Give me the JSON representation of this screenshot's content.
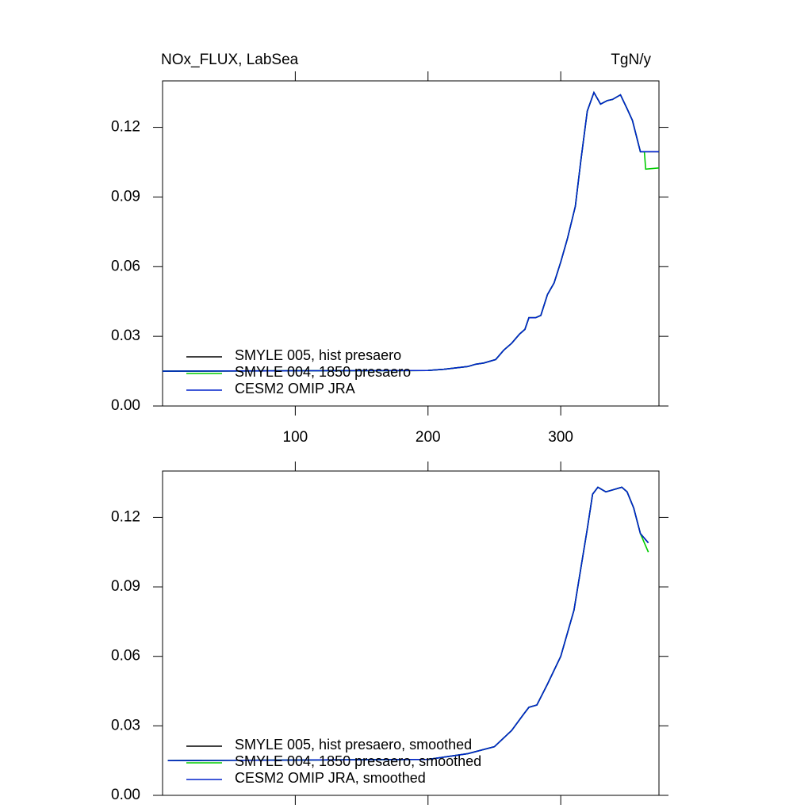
{
  "chart_data": [
    {
      "type": "line",
      "title": "NOx_FLUX, LabSea",
      "units": "TgN/y",
      "x": [
        0,
        200,
        212,
        230,
        236,
        242,
        251,
        257,
        263,
        269,
        273,
        276,
        281,
        285,
        290,
        295,
        300,
        305,
        311,
        315,
        320,
        325,
        330,
        335,
        339,
        345,
        350,
        354,
        360,
        363,
        364,
        374
      ],
      "series": [
        {
          "name": "SMYLE 005, hist presaero",
          "color": "#000000",
          "values": [
            0.015,
            0.0153,
            0.0158,
            0.017,
            0.018,
            0.0185,
            0.02,
            0.024,
            0.027,
            0.031,
            0.033,
            0.038,
            0.038,
            0.039,
            0.048,
            0.053,
            0.062,
            0.072,
            0.086,
            0.105,
            0.127,
            0.135,
            0.13,
            0.1315,
            0.132,
            0.134,
            0.128,
            0.123,
            0.1095,
            0.1095,
            0.1095,
            0.1095
          ]
        },
        {
          "name": "SMYLE 004, 1850 presaero",
          "color": "#00cc00",
          "values": [
            0.015,
            0.0153,
            0.0158,
            0.017,
            0.018,
            0.0185,
            0.02,
            0.024,
            0.027,
            0.031,
            0.033,
            0.038,
            0.038,
            0.039,
            0.048,
            0.053,
            0.062,
            0.072,
            0.086,
            0.105,
            0.127,
            0.135,
            0.13,
            0.1315,
            0.132,
            0.134,
            0.128,
            0.123,
            0.1095,
            0.1095,
            0.102,
            0.1025
          ]
        },
        {
          "name": "CESM2 OMIP JRA",
          "color": "#0022cc",
          "values": [
            0.015,
            0.0153,
            0.0158,
            0.017,
            0.018,
            0.0185,
            0.02,
            0.024,
            0.027,
            0.031,
            0.033,
            0.038,
            0.038,
            0.039,
            0.048,
            0.053,
            0.062,
            0.072,
            0.086,
            0.105,
            0.127,
            0.135,
            0.13,
            0.1315,
            0.132,
            0.134,
            0.128,
            0.123,
            0.1095,
            0.1095,
            0.1095,
            0.1095
          ]
        }
      ],
      "xlim": [
        0,
        374
      ],
      "xticks": [
        100,
        200,
        300
      ],
      "xtick_labels": true,
      "ylim": [
        0,
        0.14
      ],
      "yticks": [
        {
          "value": 0,
          "label": "0.00"
        },
        {
          "value": 0.03,
          "label": "0.03"
        },
        {
          "value": 0.06,
          "label": "0.06"
        },
        {
          "value": 0.09,
          "label": "0.09"
        },
        {
          "value": 0.12,
          "label": "0.12"
        }
      ],
      "legend": "lower left"
    },
    {
      "type": "line",
      "x": [
        4,
        200,
        230,
        250,
        263,
        272,
        276,
        282,
        290,
        300,
        310,
        320,
        324,
        328,
        334,
        340,
        346,
        350,
        355,
        360,
        366
      ],
      "series": [
        {
          "name": "SMYLE 005, hist presaero, smoothed",
          "color": "#000000",
          "values": [
            0.015,
            0.0155,
            0.018,
            0.021,
            0.028,
            0.035,
            0.038,
            0.039,
            0.048,
            0.06,
            0.08,
            0.115,
            0.13,
            0.133,
            0.131,
            0.132,
            0.133,
            0.131,
            0.124,
            0.113,
            0.109
          ]
        },
        {
          "name": "SMYLE 004, 1850 presaero, smoothed",
          "color": "#00cc00",
          "values": [
            0.015,
            0.0155,
            0.018,
            0.021,
            0.028,
            0.035,
            0.038,
            0.039,
            0.048,
            0.06,
            0.08,
            0.115,
            0.13,
            0.133,
            0.131,
            0.132,
            0.133,
            0.131,
            0.124,
            0.113,
            0.105
          ]
        },
        {
          "name": "CESM2 OMIP JRA, smoothed",
          "color": "#0022cc",
          "values": [
            0.015,
            0.0155,
            0.018,
            0.021,
            0.028,
            0.035,
            0.038,
            0.039,
            0.048,
            0.06,
            0.08,
            0.115,
            0.13,
            0.133,
            0.131,
            0.132,
            0.133,
            0.131,
            0.124,
            0.113,
            0.109
          ]
        }
      ],
      "xlim": [
        0,
        374
      ],
      "xticks": [
        100,
        200,
        300
      ],
      "xtick_labels": false,
      "ylim": [
        0,
        0.14
      ],
      "yticks": [
        {
          "value": 0,
          "label": "0.00"
        },
        {
          "value": 0.03,
          "label": "0.03"
        },
        {
          "value": 0.06,
          "label": "0.06"
        },
        {
          "value": 0.09,
          "label": "0.09"
        },
        {
          "value": 0.12,
          "label": "0.12"
        }
      ],
      "legend": "lower left"
    }
  ]
}
